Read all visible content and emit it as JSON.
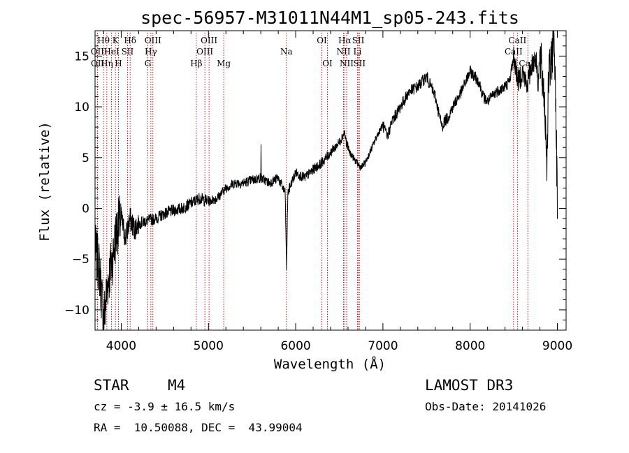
{
  "chart_data": {
    "type": "line",
    "title": "spec-56957-M31011N44M1_sp05-243.fits",
    "xlabel": "Wavelength (Å)",
    "ylabel": "Flux (relative)",
    "xlim": [
      3700,
      9100
    ],
    "ylim": [
      -12,
      17.5
    ],
    "xticks": [
      4000,
      5000,
      6000,
      7000,
      8000,
      9000
    ],
    "yticks": [
      -10,
      -5,
      0,
      5,
      10,
      15
    ],
    "series": [
      {
        "name": "spectrum",
        "x": [
          3700,
          3750,
          3800,
          3850,
          3900,
          3950,
          4000,
          4050,
          4100,
          4150,
          4200,
          4300,
          4400,
          4500,
          4600,
          4700,
          4800,
          4900,
          5000,
          5100,
          5200,
          5300,
          5400,
          5500,
          5600,
          5700,
          5800,
          5880,
          5895,
          5910,
          5950,
          6000,
          6100,
          6200,
          6300,
          6400,
          6500,
          6560,
          6580,
          6620,
          6700,
          6750,
          6800,
          6900,
          6950,
          7000,
          7050,
          7100,
          7200,
          7300,
          7400,
          7500,
          7550,
          7600,
          7650,
          7680,
          7700,
          7750,
          7800,
          7900,
          8000,
          8100,
          8150,
          8200,
          8300,
          8400,
          8450,
          8500,
          8550,
          8600,
          8650,
          8700,
          8750,
          8780,
          8800,
          8850,
          8880,
          8900,
          8930,
          8960,
          8980,
          9000
        ],
        "y": [
          -4,
          -6,
          -11,
          -7,
          -5,
          -2,
          -1,
          -3,
          -1,
          -2,
          -1.5,
          -1.2,
          -1,
          -0.5,
          -0.2,
          0,
          0.5,
          1,
          0.7,
          1,
          2,
          2.5,
          2.5,
          2.8,
          3,
          2.5,
          3,
          1.5,
          -6,
          1.5,
          2.5,
          3.5,
          3,
          3.8,
          4.5,
          5.5,
          6.5,
          7.5,
          6.5,
          5.5,
          4.5,
          4,
          4.5,
          6.5,
          7.5,
          8.2,
          7,
          8.5,
          10,
          11.5,
          12,
          13,
          12,
          11,
          9,
          8,
          8.5,
          9,
          10,
          11.5,
          13.5,
          12.5,
          11,
          10.5,
          11.5,
          12,
          12.5,
          15,
          12.5,
          13.5,
          12,
          14,
          15,
          12.5,
          15,
          11,
          5,
          13,
          14,
          17.5,
          12,
          0
        ]
      }
    ],
    "lines": [
      {
        "label": "Hθ",
        "x": 3797,
        "row": 1
      },
      {
        "label": "OII",
        "x": 3727,
        "row": 2
      },
      {
        "label": "OII",
        "x": 3729,
        "row": 3
      },
      {
        "label": "Hη",
        "x": 3835,
        "row": 3
      },
      {
        "label": "HeI",
        "x": 3889,
        "row": 2
      },
      {
        "label": "K",
        "x": 3934,
        "row": 1
      },
      {
        "label": "H",
        "x": 3968,
        "row": 3
      },
      {
        "label": "SII",
        "x": 4072,
        "row": 2
      },
      {
        "label": "Hδ",
        "x": 4102,
        "row": 1
      },
      {
        "label": "OIII",
        "x": 4363,
        "row": 1
      },
      {
        "label": "Hγ",
        "x": 4340,
        "row": 2
      },
      {
        "label": "G",
        "x": 4305,
        "row": 3
      },
      {
        "label": "Hβ",
        "x": 4861,
        "row": 3
      },
      {
        "label": "OIII",
        "x": 5007,
        "row": 1
      },
      {
        "label": "OIII",
        "x": 4959,
        "row": 2
      },
      {
        "label": "Mg",
        "x": 5175,
        "row": 3
      },
      {
        "label": "Na",
        "x": 5894,
        "row": 2
      },
      {
        "label": "OI",
        "x": 6300,
        "row": 1
      },
      {
        "label": "OI",
        "x": 6364,
        "row": 3
      },
      {
        "label": "Hα",
        "x": 6563,
        "row": 1
      },
      {
        "label": "NII",
        "x": 6548,
        "row": 2
      },
      {
        "label": "NII",
        "x": 6584,
        "row": 3
      },
      {
        "label": "Li",
        "x": 6708,
        "row": 2
      },
      {
        "label": "SII",
        "x": 6717,
        "row": 1
      },
      {
        "label": "SII",
        "x": 6731,
        "row": 3
      },
      {
        "label": "CaII",
        "x": 8542,
        "row": 1
      },
      {
        "label": "CaII",
        "x": 8498,
        "row": 2
      },
      {
        "label": "CaII",
        "x": 8662,
        "row": 3
      }
    ]
  },
  "footer": {
    "object_class": "STAR",
    "subclass": "M4",
    "survey": "LAMOST DR3",
    "cz": "cz = -3.9 ± 16.5 km/s",
    "obs_date": "Obs-Date: 20141026",
    "coords": "RA =  10.50088, DEC =  43.99004"
  }
}
